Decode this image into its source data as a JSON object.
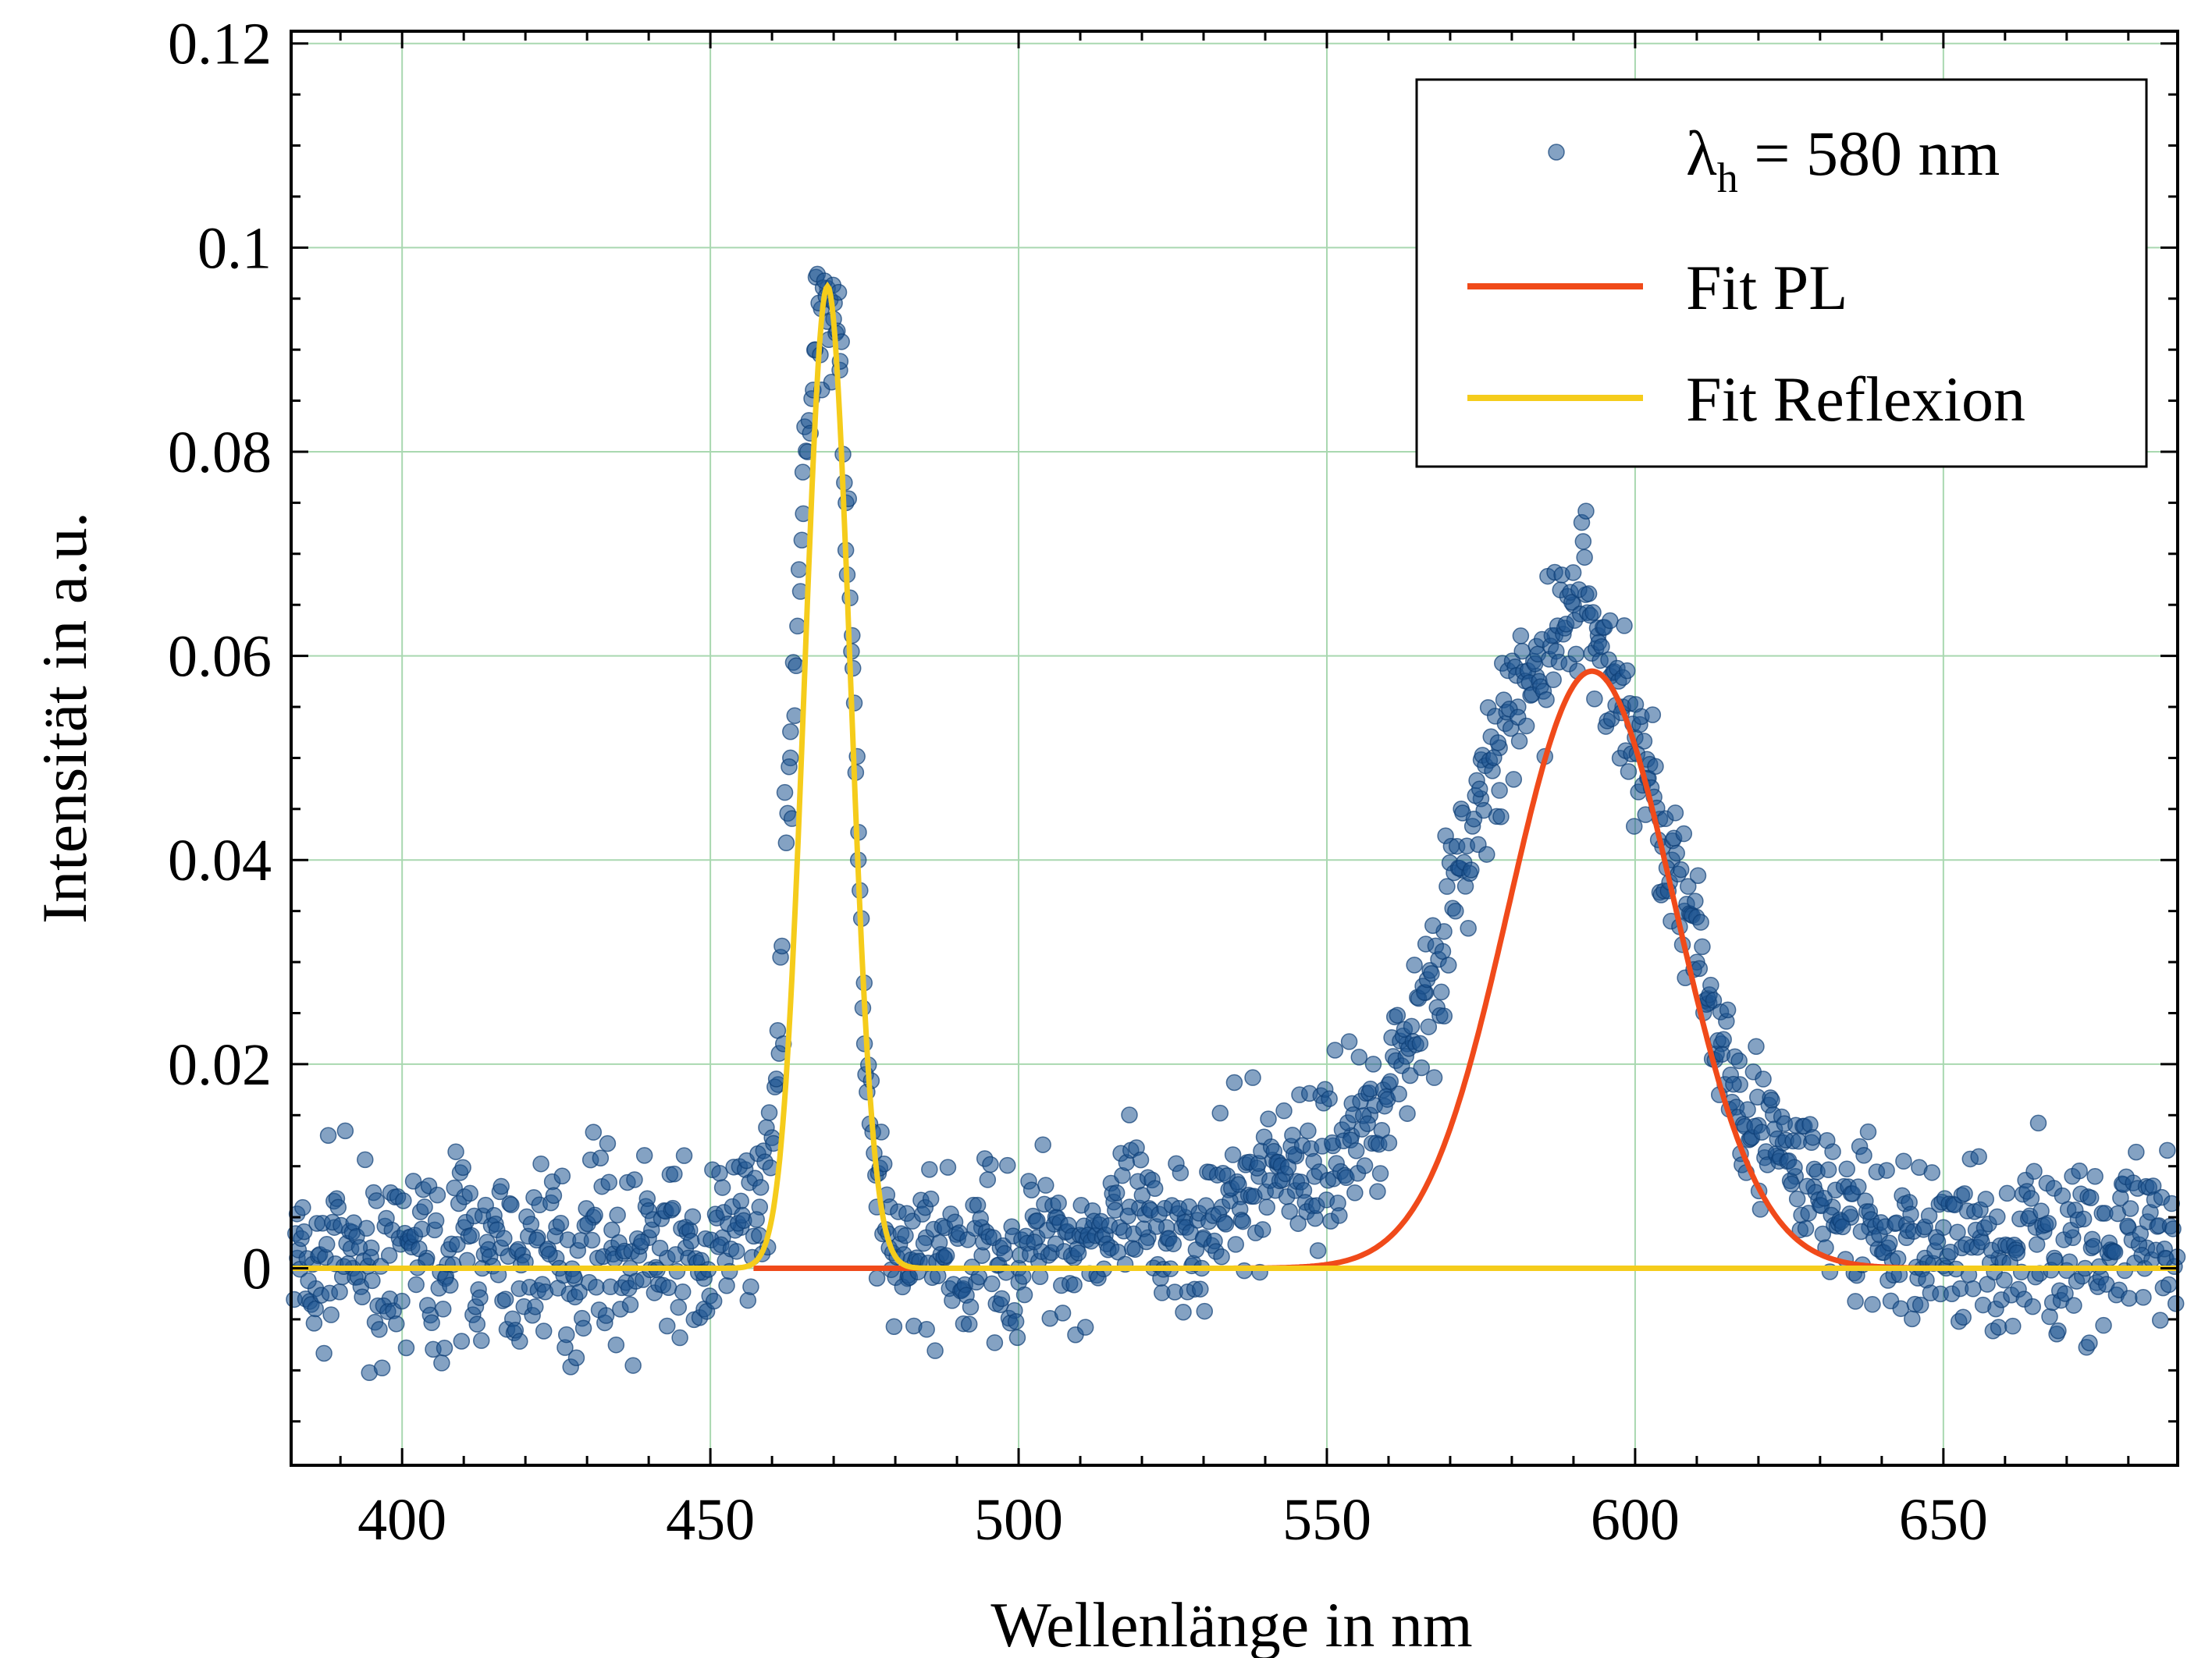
{
  "chart_data": {
    "type": "scatter",
    "xlabel": "Wellenlänge in nm",
    "ylabel": "Intensität in a.u.",
    "xlim": [
      382,
      688
    ],
    "ylim": [
      -0.0193,
      0.1212
    ],
    "xticks": [
      400,
      450,
      500,
      550,
      600,
      650
    ],
    "xtick_labels": [
      "400",
      "450",
      "500",
      "550",
      "600",
      "650"
    ],
    "xminor_step": 10,
    "yticks": [
      0,
      0.02,
      0.04,
      0.06,
      0.08,
      0.1,
      0.12
    ],
    "ytick_labels": [
      "0",
      "0.02",
      "0.04",
      "0.06",
      "0.08",
      "0.1",
      "0.12"
    ],
    "yminor_step": 0.005,
    "grid": true,
    "legend_position": "top-right",
    "legend": [
      {
        "label_main": "λ",
        "label_sub": "h",
        "label_rest": " = 580 nm",
        "kind": "marker"
      },
      {
        "label": "Fit PL",
        "kind": "line"
      },
      {
        "label": "Fit Reflexion",
        "kind": "line"
      }
    ],
    "series": [
      {
        "kind": "scatter",
        "color": "#1f5592",
        "note_points": "sampled every 0.08 nm from 382 to 688 nm; values below are representative measured points",
        "x": [
          383,
          386,
          389,
          392,
          395,
          398,
          401,
          404,
          407,
          410,
          413,
          416,
          419,
          422,
          425,
          428,
          431,
          434,
          437,
          440,
          443,
          446,
          449,
          452,
          455,
          458,
          461,
          463,
          465,
          467,
          468,
          469,
          470,
          471,
          472,
          473,
          474,
          475,
          477,
          479,
          482,
          485,
          488,
          491,
          494,
          497,
          500,
          503,
          506,
          509,
          512,
          515,
          518,
          521,
          524,
          527,
          530,
          533,
          536,
          539,
          542,
          545,
          548,
          551,
          554,
          557,
          560,
          563,
          566,
          569,
          572,
          575,
          578,
          581,
          584,
          587,
          590,
          592,
          594,
          596,
          598,
          600,
          602,
          604,
          606,
          608,
          610,
          612,
          614,
          617,
          620,
          623,
          626,
          629,
          632,
          635,
          638,
          641,
          644,
          647,
          650,
          653,
          656,
          659,
          662,
          665,
          668,
          671,
          674,
          677,
          680,
          683,
          686
        ],
        "y": [
          0.001,
          -0.002,
          0.004,
          0.0,
          0.002,
          -0.003,
          0.003,
          0.001,
          -0.001,
          0.004,
          0.0,
          0.002,
          -0.002,
          0.003,
          0.001,
          -0.001,
          0.005,
          0.002,
          0.0,
          0.003,
          0.001,
          0.002,
          -0.001,
          0.003,
          0.004,
          0.006,
          0.018,
          0.05,
          0.078,
          0.09,
          0.094,
          0.096,
          0.093,
          0.088,
          0.075,
          0.062,
          0.04,
          0.022,
          0.006,
          0.002,
          -0.001,
          0.003,
          0.001,
          -0.002,
          0.004,
          0.002,
          0.0,
          0.003,
          0.005,
          0.001,
          0.004,
          0.002,
          0.006,
          0.003,
          0.004,
          0.005,
          0.003,
          0.006,
          0.007,
          0.009,
          0.01,
          0.011,
          0.009,
          0.012,
          0.013,
          0.015,
          0.018,
          0.022,
          0.027,
          0.033,
          0.039,
          0.046,
          0.051,
          0.055,
          0.058,
          0.062,
          0.065,
          0.066,
          0.062,
          0.058,
          0.055,
          0.052,
          0.048,
          0.044,
          0.04,
          0.035,
          0.03,
          0.026,
          0.022,
          0.018,
          0.014,
          0.011,
          0.009,
          0.008,
          0.006,
          0.005,
          0.004,
          0.002,
          0.003,
          0.001,
          0.004,
          0.002,
          0.003,
          0.001,
          0.002,
          0.004,
          0.001,
          0.003,
          0.002,
          0.001,
          0.004,
          0.002,
          0.001
        ]
      },
      {
        "kind": "gaussian",
        "color": "#f04a1a",
        "amplitude": 0.0585,
        "center": 593,
        "sigma": 13.5,
        "x_from": 457,
        "x_to": 688
      },
      {
        "kind": "gaussian",
        "color": "#f5cc1b",
        "amplitude": 0.0962,
        "center": 469,
        "sigma": 3.7,
        "x_from": 382,
        "x_to": 688
      }
    ]
  }
}
